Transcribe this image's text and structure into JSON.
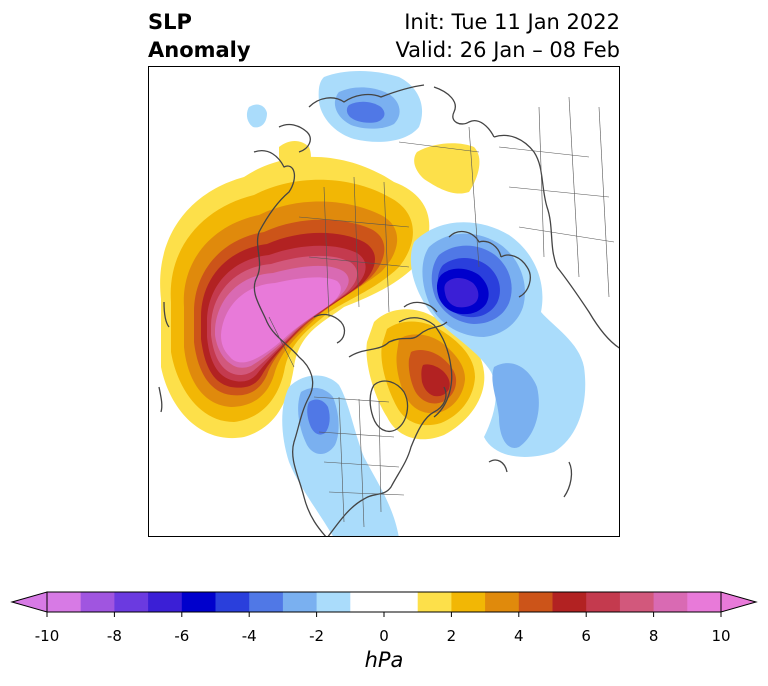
{
  "title": {
    "left_line1": "SLP",
    "left_line2": "Anomaly",
    "right_line1": "Init: Tue 11 Jan 2022",
    "right_line2": "Valid: 26 Jan – 08 Feb"
  },
  "map": {
    "projection": "north polar stereographic",
    "features": [
      "coastlines",
      "country borders",
      "US state borders",
      "Canadian province borders"
    ],
    "anomalies": [
      {
        "region": "North Pacific / Alaska",
        "sign": "positive",
        "peak_hPa": 10
      },
      {
        "region": "Greenland / Canadian Arctic",
        "sign": "positive",
        "peak_hPa": 6
      },
      {
        "region": "Northern Scandinavia / Barents Sea",
        "sign": "negative",
        "peak_hPa": -6
      },
      {
        "region": "North Atlantic",
        "sign": "negative",
        "peak_hPa": -3
      },
      {
        "region": "Western United States",
        "sign": "negative",
        "peak_hPa": -3
      },
      {
        "region": "Siberia",
        "sign": "negative",
        "peak_hPa": -4
      },
      {
        "region": "Northern Russia",
        "sign": "positive",
        "peak_hPa": 1
      }
    ]
  },
  "colorbar": {
    "unit": "hPa",
    "ticks": [
      "-10",
      "-8",
      "-6",
      "-4",
      "-2",
      "0",
      "2",
      "4",
      "6",
      "8",
      "10"
    ],
    "extend": "both",
    "colors": [
      "#d77ae5",
      "#a055e0",
      "#6b3ae0",
      "#3b1fd6",
      "#0000cc",
      "#2a3fdc",
      "#5078e6",
      "#7ab0f0",
      "#aadcfb",
      "#ffffff",
      "#ffffff",
      "#fde04a",
      "#f2b705",
      "#e08a0c",
      "#cc5419",
      "#b22222",
      "#c43a4e",
      "#d2587c",
      "#d96ab3",
      "#e87ad9"
    ],
    "min_color": "#d77ae5",
    "max_color": "#e87ad9"
  }
}
